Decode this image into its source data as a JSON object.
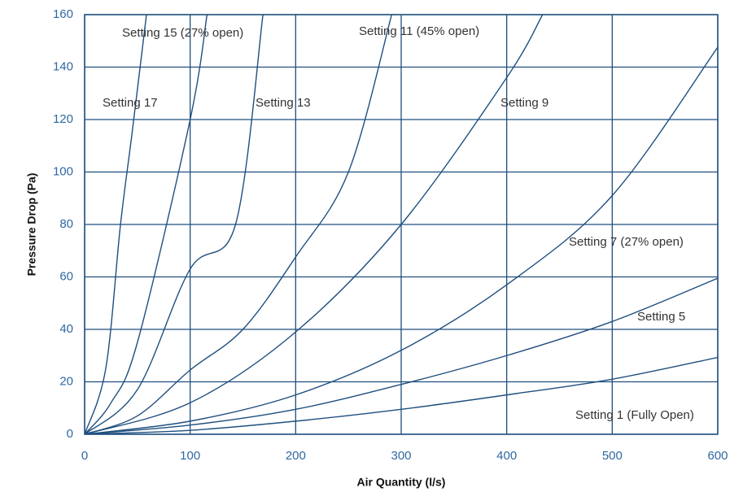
{
  "chart_data": {
    "type": "line",
    "xlabel": "Air Quantity (l/s)",
    "ylabel": "Pressure Drop (Pa)",
    "xlim": [
      0,
      600
    ],
    "ylim": [
      0,
      160
    ],
    "xticks": [
      0,
      100,
      200,
      300,
      400,
      500,
      600
    ],
    "yticks": [
      0,
      20,
      40,
      60,
      80,
      100,
      120,
      140,
      160
    ],
    "grid": true,
    "color": "#1f4f7f",
    "series": [
      {
        "name": "Setting 1 (Fully Open)",
        "x": [
          0,
          100,
          200,
          300,
          400,
          500,
          600
        ],
        "values": [
          0,
          1.5,
          5,
          9.5,
          15,
          21,
          29.3
        ]
      },
      {
        "name": "Setting 5",
        "x": [
          0,
          100,
          200,
          300,
          400,
          500,
          600
        ],
        "values": [
          0,
          3.5,
          9.5,
          19,
          30,
          43,
          59.5
        ]
      },
      {
        "name": "Setting 7 (27% open)",
        "x": [
          0,
          100,
          200,
          300,
          400,
          500,
          600
        ],
        "values": [
          0,
          5,
          15,
          32,
          57,
          91,
          147.6
        ]
      },
      {
        "name": "Setting 9",
        "x": [
          0,
          100,
          200,
          300,
          400,
          434
        ],
        "values": [
          0,
          12,
          39,
          80,
          136,
          160
        ]
      },
      {
        "name": "Setting 11 (45% open)",
        "x": [
          0,
          50,
          100,
          150,
          200,
          250,
          291
        ],
        "values": [
          0,
          7,
          24.5,
          40,
          67.6,
          100,
          160
        ]
      },
      {
        "name": "Setting 13",
        "x": [
          0,
          50,
          100,
          143,
          169
        ],
        "values": [
          0,
          17,
          63,
          80,
          160
        ]
      },
      {
        "name": "Setting 15 (27% open)",
        "x": [
          0,
          25,
          50,
          100,
          116
        ],
        "values": [
          0,
          12,
          35,
          120,
          160
        ]
      },
      {
        "name": "Setting 17",
        "x": [
          0,
          20,
          34,
          45,
          58.6
        ],
        "values": [
          0,
          25,
          80,
          115,
          160
        ]
      }
    ]
  }
}
